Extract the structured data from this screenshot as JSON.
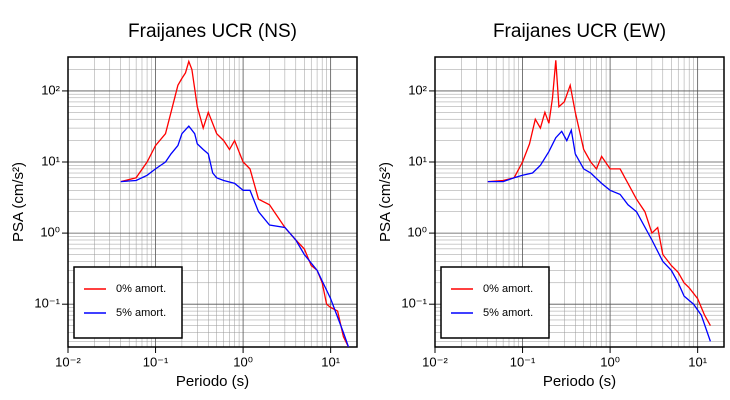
{
  "chart_data": [
    {
      "type": "line",
      "title": "Fraijanes UCR (NS)",
      "xlabel": "Periodo (s)",
      "ylabel": "PSA (cm/s²)",
      "log_x": true,
      "log_y": true,
      "grid": true,
      "legend": "lower left",
      "xlim": [
        0.01,
        20
      ],
      "ylim": [
        0.025,
        300
      ],
      "xticks": [
        {
          "value": 0.01,
          "label": "10⁻²"
        },
        {
          "value": 0.1,
          "label": "10⁻¹"
        },
        {
          "value": 1,
          "label": "10⁰"
        },
        {
          "value": 10,
          "label": "10¹"
        }
      ],
      "yticks": [
        {
          "value": 0.1,
          "label": "10⁻¹"
        },
        {
          "value": 1,
          "label": "10⁰"
        },
        {
          "value": 10,
          "label": "10¹"
        },
        {
          "value": 100,
          "label": "10²"
        }
      ],
      "series": [
        {
          "name": "0% amort.",
          "color": "#ff0000",
          "x": [
            0.04,
            0.06,
            0.08,
            0.1,
            0.13,
            0.15,
            0.18,
            0.2,
            0.22,
            0.24,
            0.26,
            0.3,
            0.35,
            0.4,
            0.5,
            0.6,
            0.7,
            0.8,
            1.0,
            1.2,
            1.5,
            2,
            3,
            4,
            5,
            6,
            7,
            8,
            9,
            10,
            12,
            14,
            16
          ],
          "values": [
            5.3,
            6,
            10,
            17,
            25,
            50,
            120,
            150,
            180,
            260,
            200,
            60,
            30,
            50,
            25,
            20,
            15,
            20,
            10,
            8,
            3,
            2.5,
            1.2,
            0.8,
            0.6,
            0.35,
            0.3,
            0.2,
            0.1,
            0.09,
            0.08,
            0.035,
            0.025
          ]
        },
        {
          "name": "5% amort.",
          "color": "#0000ff",
          "x": [
            0.04,
            0.06,
            0.08,
            0.1,
            0.13,
            0.15,
            0.18,
            0.2,
            0.24,
            0.28,
            0.3,
            0.35,
            0.4,
            0.45,
            0.5,
            0.6,
            0.8,
            1,
            1.2,
            1.5,
            2,
            3,
            4,
            5,
            7,
            10,
            14,
            16
          ],
          "values": [
            5.3,
            5.5,
            6.5,
            8,
            10,
            13,
            17,
            25,
            32,
            25,
            18,
            15,
            13,
            7,
            6,
            5.5,
            5,
            4,
            4,
            2,
            1.3,
            1.2,
            0.8,
            0.5,
            0.3,
            0.12,
            0.04,
            0.025
          ]
        }
      ]
    },
    {
      "type": "line",
      "title": "Fraijanes UCR (EW)",
      "xlabel": "Periodo (s)",
      "ylabel": "PSA (cm/s²)",
      "log_x": true,
      "log_y": true,
      "grid": true,
      "legend": "lower left",
      "xlim": [
        0.01,
        20
      ],
      "ylim": [
        0.025,
        300
      ],
      "xticks": [
        {
          "value": 0.01,
          "label": "10⁻²"
        },
        {
          "value": 0.1,
          "label": "10⁻¹"
        },
        {
          "value": 1,
          "label": "10⁰"
        },
        {
          "value": 10,
          "label": "10¹"
        }
      ],
      "yticks": [
        {
          "value": 0.1,
          "label": "10⁻¹"
        },
        {
          "value": 1,
          "label": "10⁰"
        },
        {
          "value": 10,
          "label": "10¹"
        },
        {
          "value": 100,
          "label": "10²"
        }
      ],
      "series": [
        {
          "name": "0% amort.",
          "color": "#ff0000",
          "x": [
            0.04,
            0.06,
            0.08,
            0.1,
            0.12,
            0.14,
            0.16,
            0.18,
            0.2,
            0.22,
            0.24,
            0.26,
            0.3,
            0.35,
            0.4,
            0.5,
            0.6,
            0.7,
            0.8,
            1,
            1.3,
            1.6,
            2,
            2.5,
            3,
            3.5,
            4,
            5,
            6,
            7,
            8,
            10,
            12,
            14
          ],
          "values": [
            5.3,
            5.5,
            6,
            10,
            18,
            40,
            30,
            50,
            35,
            80,
            270,
            60,
            70,
            120,
            50,
            15,
            10,
            8,
            12,
            8,
            8,
            5,
            3,
            2,
            1,
            1.2,
            0.5,
            0.35,
            0.28,
            0.2,
            0.17,
            0.12,
            0.07,
            0.05
          ]
        },
        {
          "name": "5% amort.",
          "color": "#0000ff",
          "x": [
            0.04,
            0.06,
            0.08,
            0.1,
            0.13,
            0.16,
            0.2,
            0.24,
            0.28,
            0.32,
            0.36,
            0.4,
            0.5,
            0.6,
            0.8,
            1,
            1.3,
            1.6,
            2,
            3,
            4,
            5,
            6,
            7,
            9,
            11,
            14
          ],
          "values": [
            5.3,
            5.3,
            6,
            6.5,
            7,
            9,
            14,
            22,
            27,
            20,
            28,
            13,
            8,
            7,
            5,
            4,
            3.5,
            2.5,
            2,
            0.8,
            0.4,
            0.3,
            0.2,
            0.13,
            0.1,
            0.07,
            0.03
          ]
        }
      ]
    }
  ]
}
